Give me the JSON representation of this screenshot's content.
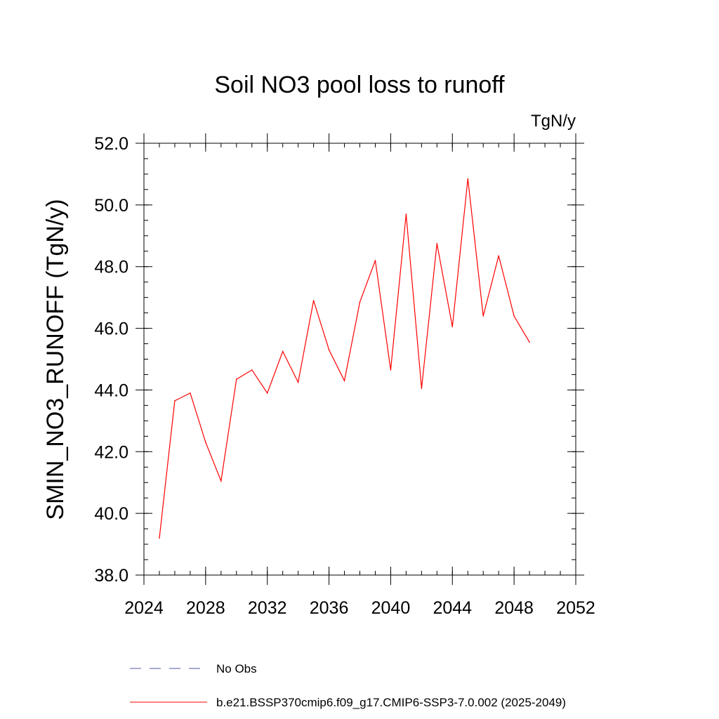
{
  "chart_data": {
    "type": "line",
    "title": "Soil NO3 pool loss to runoff",
    "units_label": "TgN/y",
    "ylabel": "SMIN_NO3_RUNOFF  (TgN/y)",
    "xlabel": "",
    "xlim": [
      2024,
      2052
    ],
    "ylim": [
      38.0,
      52.0
    ],
    "x_ticks": [
      2024,
      2028,
      2032,
      2036,
      2040,
      2044,
      2048,
      2052
    ],
    "x_tick_labels": [
      "2024",
      "2028",
      "2032",
      "2036",
      "2040",
      "2044",
      "2048",
      "2052"
    ],
    "y_ticks": [
      38,
      40,
      42,
      44,
      46,
      48,
      50,
      52
    ],
    "y_tick_labels": [
      "38.0",
      "40.0",
      "42.0",
      "44.0",
      "46.0",
      "48.0",
      "50.0",
      "52.0"
    ],
    "grid": false,
    "legend_placement": "bottom",
    "series": [
      {
        "name": "b.e21.BSSP370cmip6.f09_g17.CMIP6-SSP3-7.0.002 (2025-2049)",
        "color": "#ff0000",
        "style": "solid",
        "x": [
          2025,
          2026,
          2027,
          2028,
          2029,
          2030,
          2031,
          2032,
          2033,
          2034,
          2035,
          2036,
          2037,
          2038,
          2039,
          2040,
          2041,
          2042,
          2043,
          2044,
          2045,
          2046,
          2047,
          2048,
          2049
        ],
        "values": [
          39.2,
          43.65,
          43.9,
          42.3,
          41.05,
          44.35,
          44.65,
          43.9,
          45.25,
          44.25,
          46.9,
          45.3,
          44.3,
          46.85,
          48.2,
          44.65,
          49.7,
          44.05,
          48.75,
          46.05,
          50.85,
          46.4,
          48.35,
          46.4,
          45.55
        ]
      }
    ],
    "legend": [
      {
        "name": "No Obs",
        "color": "#5555aa",
        "style": "dashed"
      },
      {
        "name": "b.e21.BSSP370cmip6.f09_g17.CMIP6-SSP3-7.0.002 (2025-2049)",
        "color": "#ff0000",
        "style": "solid"
      }
    ]
  }
}
